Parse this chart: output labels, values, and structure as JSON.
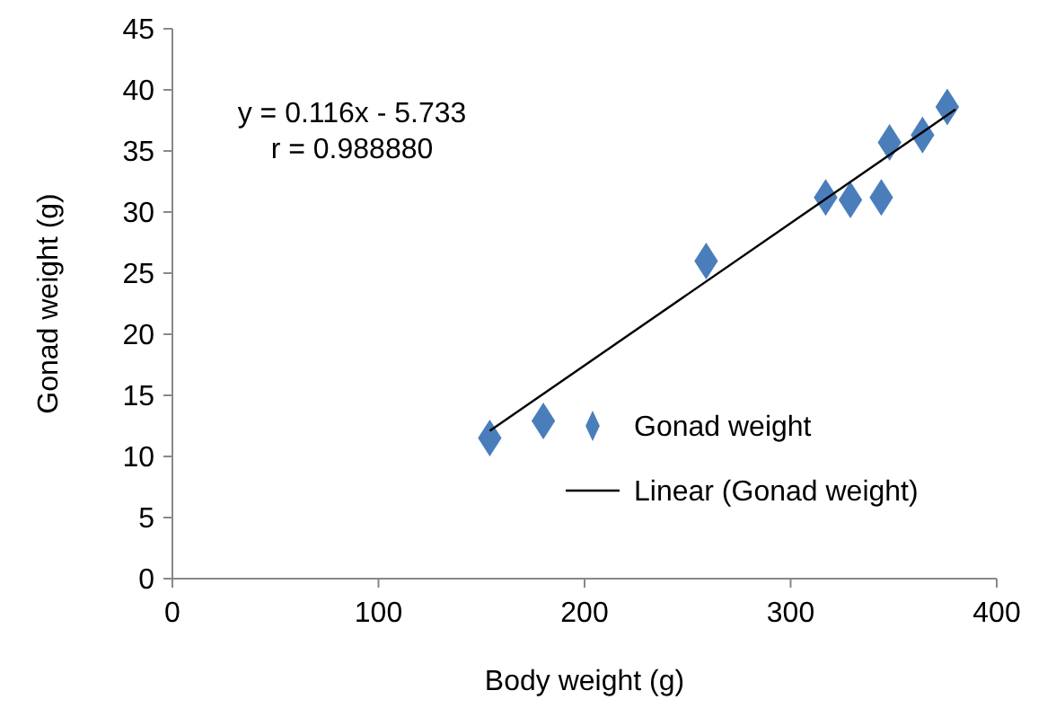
{
  "chart_data": {
    "type": "scatter",
    "xlabel": "Body weight  (g)",
    "ylabel": "Gonad weight (g)",
    "xlim": [
      0,
      400
    ],
    "xticks": [
      0,
      100,
      200,
      300,
      400
    ],
    "ylim": [
      0,
      45
    ],
    "yticks": [
      0,
      5,
      10,
      15,
      20,
      25,
      30,
      35,
      40,
      45
    ],
    "grid": false,
    "legend": "bottom right",
    "annotations": [
      "y = 0.116x - 5.733",
      "r = 0.988880"
    ],
    "series": [
      {
        "name": "Gonad weight",
        "marker": "diamond",
        "color": "#4a7ebb",
        "x": [
          154,
          180,
          259,
          317,
          329,
          344,
          348,
          364,
          376
        ],
        "values": [
          11.5,
          12.9,
          26,
          31.2,
          31,
          31.2,
          35.7,
          36.3,
          38.6
        ]
      },
      {
        "name": "Linear (Gonad  weight)",
        "type": "line",
        "marker": "none",
        "color": "#000000",
        "x": [
          154,
          380
        ],
        "values": [
          12.1,
          38.4
        ]
      }
    ]
  }
}
